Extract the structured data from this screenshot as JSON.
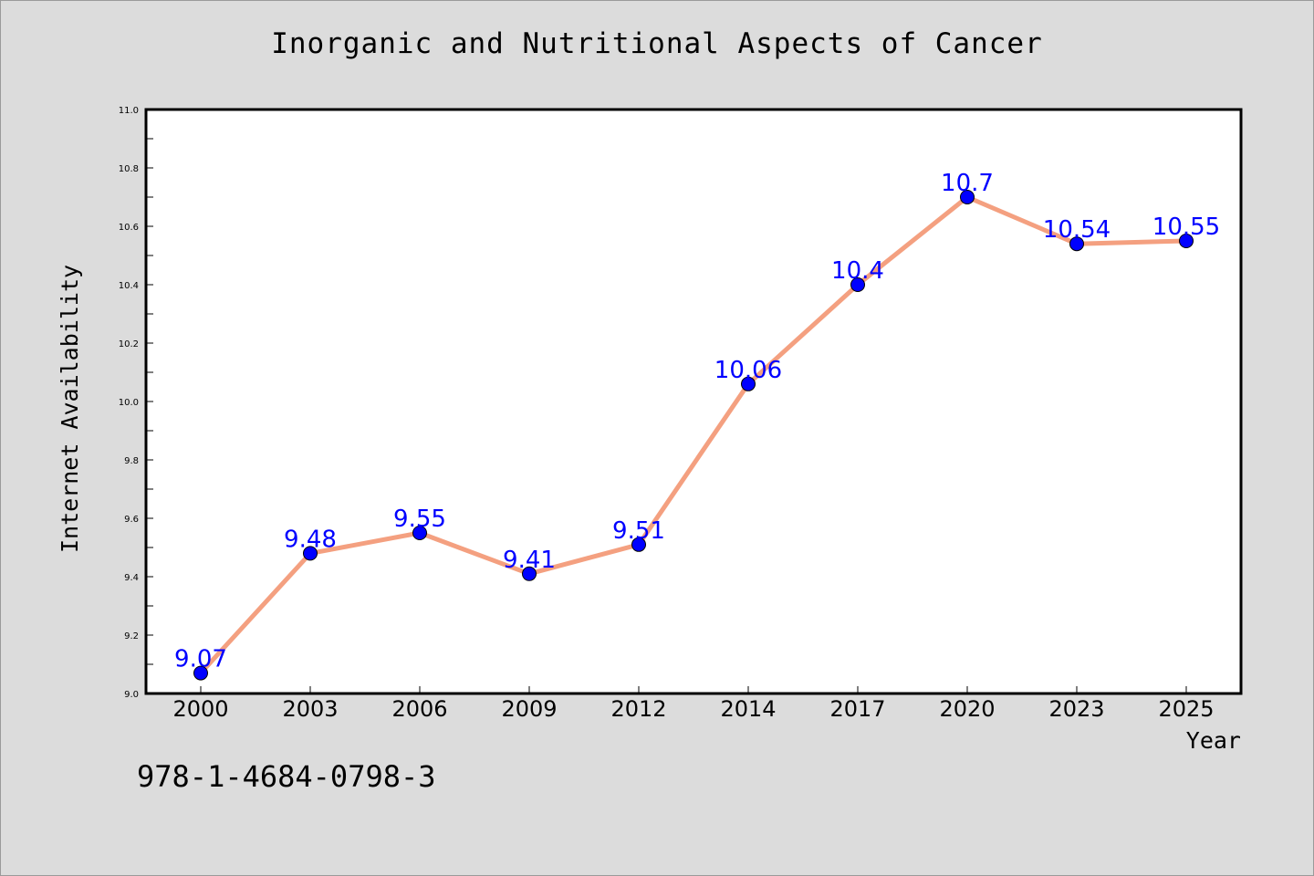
{
  "chart_data": {
    "type": "line",
    "title": "Inorganic and Nutritional Aspects of Cancer",
    "xlabel": "Year",
    "ylabel": "Internet Availability",
    "categories": [
      "2000",
      "2003",
      "2006",
      "2009",
      "2012",
      "2014",
      "2017",
      "2020",
      "2023",
      "2025"
    ],
    "series": [
      {
        "values": [
          9.07,
          9.48,
          9.55,
          9.41,
          9.51,
          10.06,
          10.4,
          10.7,
          10.54,
          10.55
        ],
        "labels": [
          "9.07",
          "9.48",
          "9.55",
          "9.41",
          "9.51",
          "10.06",
          "10.4",
          "10.7",
          "10.54",
          "10.55"
        ],
        "line_color": "#f4a080",
        "marker_color": "#0000ff"
      }
    ],
    "ylim": [
      9.0,
      11.0
    ],
    "yticks": [
      "9.0",
      "9.2",
      "9.4",
      "9.6",
      "9.8",
      "10.0",
      "10.2",
      "10.4",
      "10.6",
      "10.8",
      "11.0"
    ],
    "grid": false,
    "legend": "none"
  },
  "footer": {
    "isbn": "978-1-4684-0798-3"
  },
  "colors": {
    "background": "#dcdcdc",
    "plot_background": "#ffffff",
    "data_label": "#0000ff"
  }
}
